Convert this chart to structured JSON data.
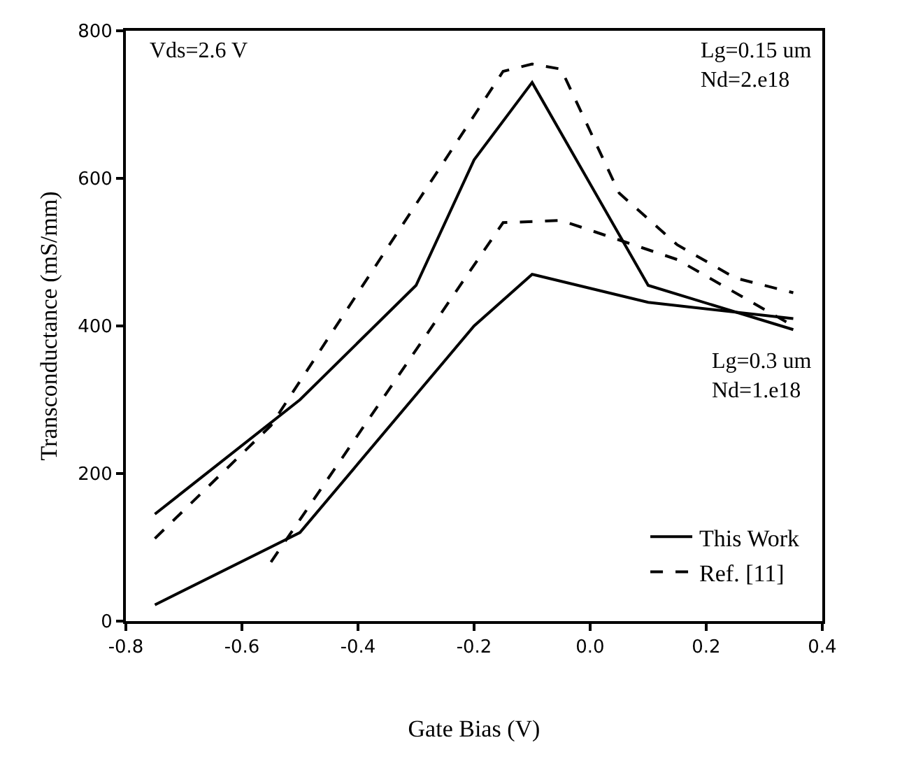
{
  "chart_data": {
    "type": "line",
    "xlabel": "Gate Bias (V)",
    "ylabel": "Transconductance (mS/mm)",
    "xlim": [
      -0.8,
      0.4
    ],
    "xticks": [
      {
        "value": -0.8,
        "label": "-0.8"
      },
      {
        "value": -0.6,
        "label": "-0.6"
      },
      {
        "value": -0.4,
        "label": "-0.4"
      },
      {
        "value": -0.2,
        "label": "-0.2"
      },
      {
        "value": 0,
        "label": "0.0"
      },
      {
        "value": 0.2,
        "label": "0.2"
      },
      {
        "value": 0.4,
        "label": "0.4"
      }
    ],
    "ylim": [
      0,
      800
    ],
    "yticks": [
      0,
      200,
      400,
      600,
      800
    ],
    "legend": "bottom right",
    "marker": "none",
    "annotations": [
      "Vds=2.6 V",
      "Lg=0.15 um\nNd=2.e18",
      "Lg=0.3 um\nNd=1.e18"
    ],
    "series": [
      {
        "name": "This Work",
        "color": "#000000",
        "line_style": "solid",
        "x": [
          -0.75,
          -0.5,
          -0.3,
          -0.2,
          -0.1,
          0.1,
          0.35
        ],
        "values": [
          145,
          300,
          455,
          625,
          730,
          455,
          395
        ]
      },
      {
        "name": "Ref. [11]",
        "color": "#000000",
        "line_style": "dashed",
        "x": [
          -0.75,
          -0.55,
          -0.15,
          -0.1,
          -0.05,
          0.05,
          0.15,
          0.25,
          0.35
        ],
        "values": [
          112,
          265,
          745,
          755,
          748,
          580,
          510,
          465,
          445
        ]
      },
      {
        "color": "#000000",
        "line_style": "solid",
        "x": [
          -0.75,
          -0.5,
          -0.2,
          -0.1,
          0.1,
          0.35
        ],
        "values": [
          22,
          120,
          400,
          470,
          432,
          410
        ]
      },
      {
        "color": "#000000",
        "line_style": "dashed",
        "x": [
          -0.55,
          -0.15,
          -0.05,
          0.15,
          0.35
        ],
        "values": [
          80,
          540,
          543,
          490,
          400
        ]
      }
    ]
  }
}
